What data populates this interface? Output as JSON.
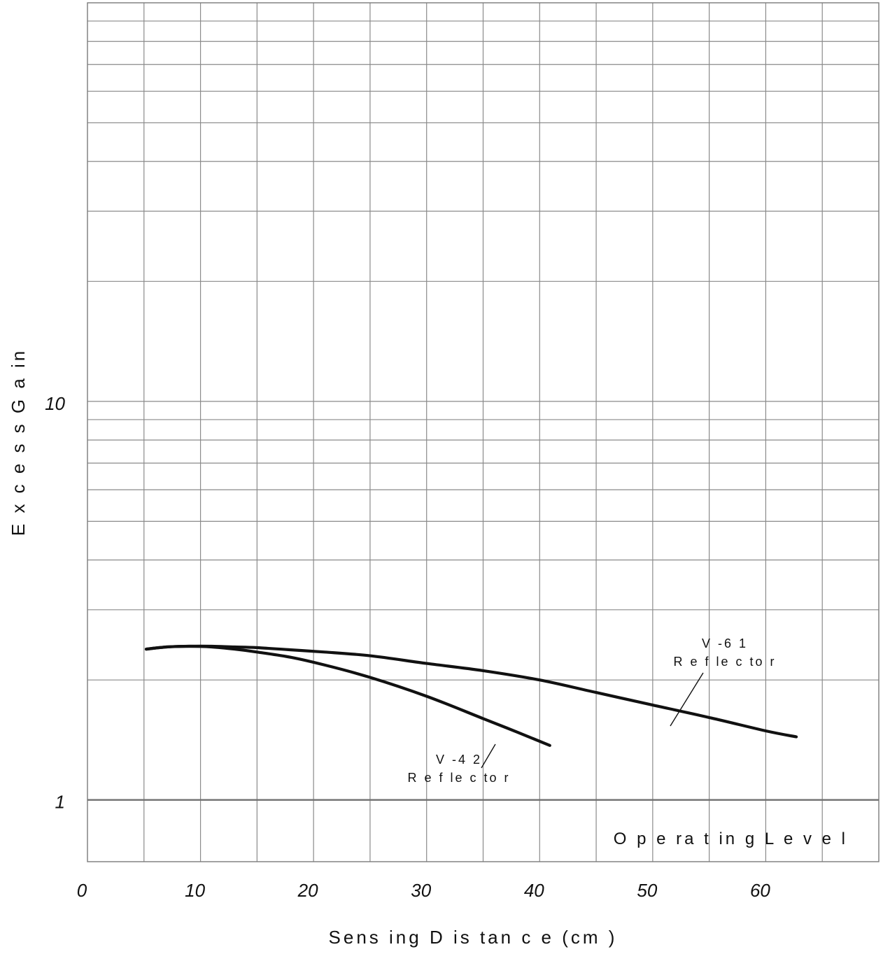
{
  "chart_data": {
    "type": "line",
    "title": "",
    "xlabel": "Sens ing  D is tan c e (cm )",
    "ylabel": "E x c e s s  G a in",
    "x_scale": "linear",
    "y_scale": "log",
    "xlim": [
      0,
      70
    ],
    "ylim": [
      0.7,
      100
    ],
    "grid": true,
    "x_ticks": [
      {
        "value": 0,
        "label": "0"
      },
      {
        "value": 10,
        "label": "10"
      },
      {
        "value": 20,
        "label": "20"
      },
      {
        "value": 30,
        "label": "30"
      },
      {
        "value": 40,
        "label": "40"
      },
      {
        "value": 50,
        "label": "50"
      },
      {
        "value": 60,
        "label": "60"
      }
    ],
    "y_ticks": [
      {
        "value": 1,
        "label": "1"
      },
      {
        "value": 10,
        "label": "10"
      }
    ],
    "x_gridlines": [
      5,
      10,
      15,
      20,
      25,
      30,
      35,
      40,
      45,
      50,
      55,
      60,
      65
    ],
    "y_gridlines": [
      1,
      2,
      3,
      4,
      5,
      6,
      7,
      8,
      9,
      10,
      20,
      30,
      40,
      50,
      60,
      70,
      80,
      90
    ],
    "series": [
      {
        "annotation": [
          "V -6 1",
          "R e f le c to r"
        ],
        "x": [
          5.2,
          7,
          9,
          11,
          13,
          15,
          18,
          21,
          25,
          30,
          35,
          40,
          45,
          50,
          55,
          60,
          62.7
        ],
        "y": [
          2.39,
          2.42,
          2.43,
          2.43,
          2.42,
          2.41,
          2.38,
          2.35,
          2.3,
          2.2,
          2.11,
          2.0,
          1.86,
          1.73,
          1.61,
          1.49,
          1.44
        ]
      },
      {
        "annotation": [
          "V -4 2",
          "R e f le c to r"
        ],
        "x": [
          5.2,
          7,
          9,
          11,
          13,
          15,
          18,
          21,
          25,
          30,
          35,
          38,
          40.9
        ],
        "y": [
          2.39,
          2.42,
          2.43,
          2.42,
          2.39,
          2.35,
          2.28,
          2.18,
          2.03,
          1.82,
          1.6,
          1.48,
          1.37
        ]
      }
    ],
    "reference_line": {
      "y": 1,
      "label": "O p e ra t in g  L e v e l"
    }
  }
}
